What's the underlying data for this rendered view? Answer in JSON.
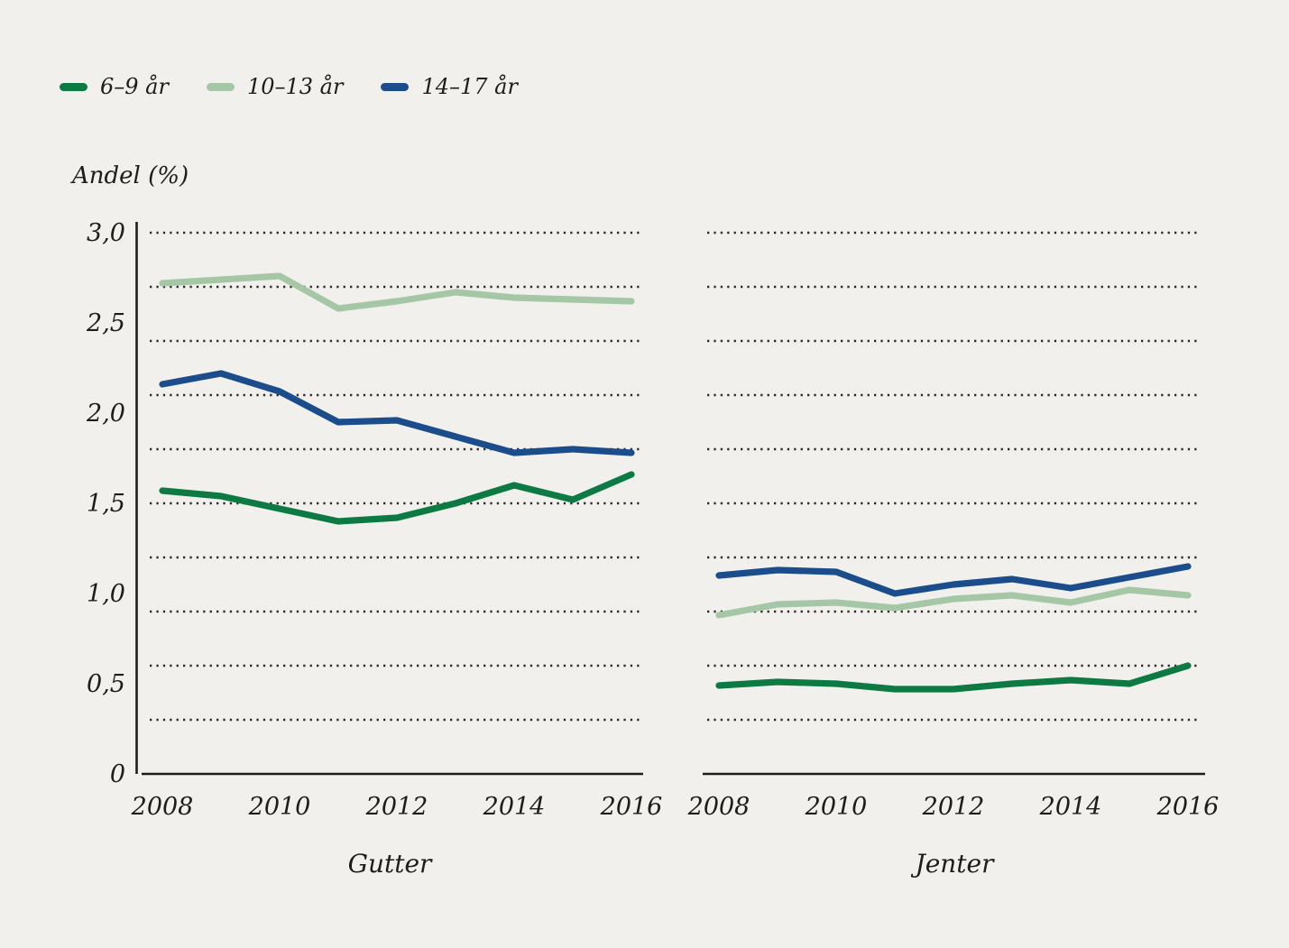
{
  "page": {
    "background_color": "#f2f0ed",
    "text_color": "#1f1d1a"
  },
  "legend": {
    "items": [
      {
        "label": "6–9 år",
        "color": "#0c7a42"
      },
      {
        "label": "10–13 år",
        "color": "#a5c7a5"
      },
      {
        "label": "14–17 år",
        "color": "#1b4d8c"
      }
    ]
  },
  "chart_data": {
    "type": "line",
    "ylabel": "Andel (%)",
    "ylim": [
      0,
      3.0
    ],
    "x": [
      2008,
      2009,
      2010,
      2011,
      2012,
      2013,
      2014,
      2015,
      2016
    ],
    "x_ticks": [
      2008,
      2010,
      2012,
      2014,
      2016
    ],
    "x_tick_labels": [
      "2008",
      "2010",
      "2012",
      "2014",
      "2016"
    ],
    "y_ticks": [
      3.0,
      2.5,
      2.0,
      1.5,
      1.0,
      0.5,
      0
    ],
    "y_tick_labels": [
      "3,0",
      "2,5",
      "2,0",
      "1,5",
      "1,0",
      "0,5",
      "0"
    ],
    "gridlines_at": [
      0.3,
      0.6,
      0.9,
      1.2,
      1.5,
      1.8,
      2.1,
      2.4,
      2.7,
      3.0
    ],
    "grid_style": "dotted-horizontal",
    "legend_position": "top-left",
    "panels": [
      {
        "title": "Gutter",
        "series": [
          {
            "name": "6–9 år",
            "color": "#0c7a42",
            "values": [
              1.57,
              1.54,
              1.47,
              1.4,
              1.42,
              1.5,
              1.6,
              1.52,
              1.66
            ]
          },
          {
            "name": "10–13 år",
            "color": "#a5c7a5",
            "values": [
              2.72,
              2.74,
              2.76,
              2.58,
              2.62,
              2.67,
              2.64,
              2.63,
              2.62
            ]
          },
          {
            "name": "14–17 år",
            "color": "#1b4d8c",
            "values": [
              2.16,
              2.22,
              2.12,
              1.95,
              1.96,
              1.87,
              1.78,
              1.8,
              1.78
            ]
          }
        ]
      },
      {
        "title": "Jenter",
        "series": [
          {
            "name": "6–9 år",
            "color": "#0c7a42",
            "values": [
              0.49,
              0.51,
              0.5,
              0.47,
              0.47,
              0.5,
              0.52,
              0.5,
              0.6
            ]
          },
          {
            "name": "10–13 år",
            "color": "#a5c7a5",
            "values": [
              0.88,
              0.94,
              0.95,
              0.92,
              0.97,
              0.99,
              0.95,
              1.02,
              0.99
            ]
          },
          {
            "name": "14–17 år",
            "color": "#1b4d8c",
            "values": [
              1.1,
              1.13,
              1.12,
              1.0,
              1.05,
              1.08,
              1.03,
              1.09,
              1.15
            ]
          }
        ]
      }
    ]
  }
}
